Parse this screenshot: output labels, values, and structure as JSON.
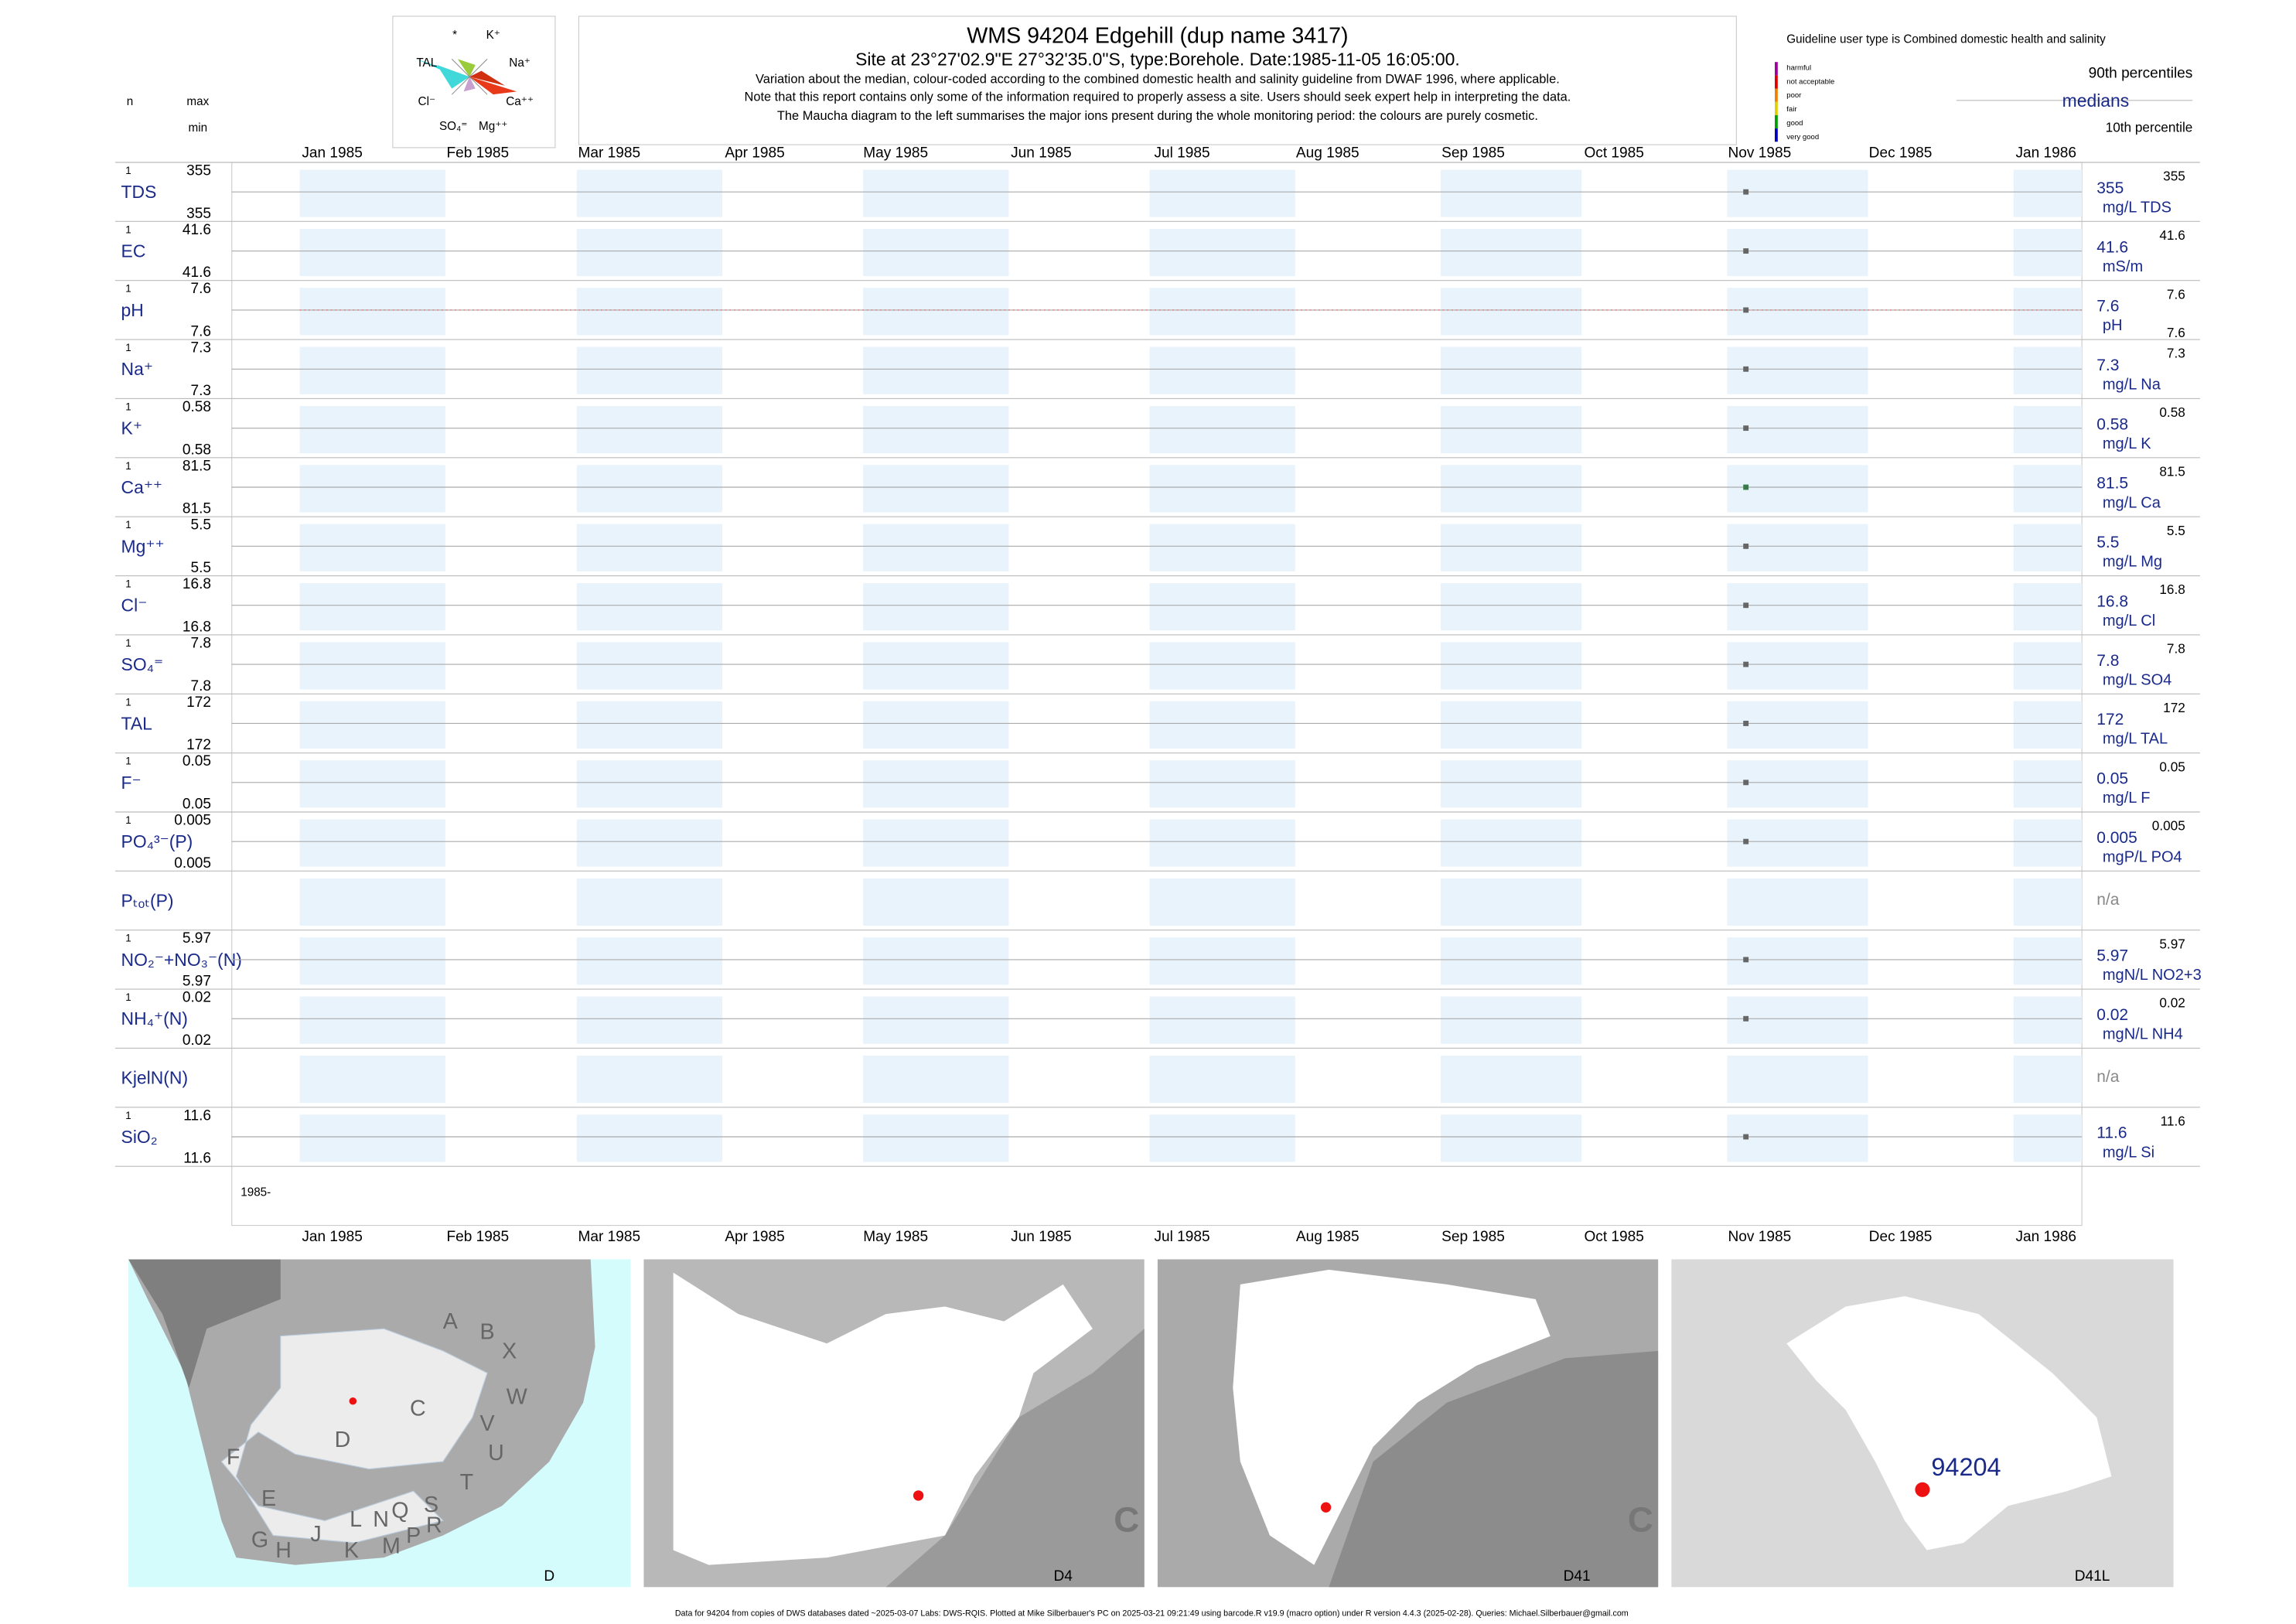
{
  "header": {
    "title": "WMS 94204  Edgehill (dup name 3417)",
    "subtitle": "Site at 23°27'02.9\"E 27°32'35.0\"S, type:Borehole. Date:1985-11-05 16:05:00.",
    "notes": [
      "Variation about the median,  colour-coded according to the combined domestic health and salinity guideline from DWAF 1996, where applicable.",
      "Note that this report contains only some of the information required to properly assess a site. Users should seek expert help in interpreting the data.",
      "The Maucha diagram to the left summarises the major ions present during the whole monitoring period: the colours are purely cosmetic."
    ]
  },
  "maucha": {
    "labels": [
      "*",
      "K⁺",
      "TAL",
      "Na⁺",
      "Cl⁻",
      "Ca⁺⁺",
      "SO₄⁼",
      "Mg⁺⁺"
    ]
  },
  "legend": {
    "guideline": "Guideline user type is Combined domestic health and salinity",
    "levels": [
      {
        "label": "harmful",
        "color": "#a000a0"
      },
      {
        "label": "not acceptable",
        "color": "#e00000"
      },
      {
        "label": "poor",
        "color": "#f08000"
      },
      {
        "label": "fair",
        "color": "#e0d000"
      },
      {
        "label": "good",
        "color": "#00a000"
      },
      {
        "label": "very good",
        "color": "#0000c0"
      }
    ],
    "p90": "90th percentiles",
    "median": "medians",
    "p10": "10th percentile"
  },
  "columns": {
    "n": "n",
    "max": "max",
    "min": "min"
  },
  "months": [
    "Jan 1985",
    "Feb 1985",
    "Mar 1985",
    "Apr 1985",
    "May 1985",
    "Jun 1985",
    "Jul 1985",
    "Aug 1985",
    "Sep 1985",
    "Oct 1985",
    "Nov 1985",
    "Dec 1985",
    "Jan 1986"
  ],
  "axis_start": "1985-",
  "rows": [
    {
      "name": "TDS",
      "n": 1,
      "max": 355,
      "min": 355,
      "median": 355,
      "unit": "mg/L TDS",
      "p90": 355,
      "color": "#666666"
    },
    {
      "name": "EC",
      "n": 1,
      "max": 41.6,
      "min": 41.6,
      "median": 41.6,
      "unit": "mS/m",
      "p90": 41.6,
      "color": "#666666"
    },
    {
      "name": "pH",
      "n": 1,
      "max": 7.6,
      "min": 7.6,
      "median": 7.6,
      "unit": "pH",
      "p90": 7.6,
      "p10": 7.6,
      "color": "#666666"
    },
    {
      "name": "Na⁺",
      "n": 1,
      "max": 7.3,
      "min": 7.3,
      "median": 7.3,
      "unit": "mg/L Na",
      "p90": 7.3,
      "color": "#666666"
    },
    {
      "name": "K⁺",
      "n": 1,
      "max": 0.58,
      "min": 0.58,
      "median": 0.58,
      "unit": "mg/L K",
      "p90": 0.58,
      "color": "#666666"
    },
    {
      "name": "Ca⁺⁺",
      "n": 1,
      "max": 81.5,
      "min": 81.5,
      "median": 81.5,
      "unit": "mg/L Ca",
      "p90": 81.5,
      "color": "#3a7a4a"
    },
    {
      "name": "Mg⁺⁺",
      "n": 1,
      "max": 5.5,
      "min": 5.5,
      "median": 5.5,
      "unit": "mg/L Mg",
      "p90": 5.5,
      "color": "#666666"
    },
    {
      "name": "Cl⁻",
      "n": 1,
      "max": 16.8,
      "min": 16.8,
      "median": 16.8,
      "unit": "mg/L Cl",
      "p90": 16.8,
      "color": "#666666"
    },
    {
      "name": "SO₄⁼",
      "n": 1,
      "max": 7.8,
      "min": 7.8,
      "median": 7.8,
      "unit": "mg/L SO4",
      "p90": 7.8,
      "color": "#666666"
    },
    {
      "name": "TAL",
      "n": 1,
      "max": 172,
      "min": 172,
      "median": 172,
      "unit": "mg/L TAL",
      "p90": 172,
      "color": "#666666"
    },
    {
      "name": "F⁻",
      "n": 1,
      "max": 0.05,
      "min": 0.05,
      "median": 0.05,
      "unit": "mg/L F",
      "p90": 0.05,
      "color": "#666666"
    },
    {
      "name": "PO₄³⁻(P)",
      "n": 1,
      "max": 0.005,
      "min": 0.005,
      "median": 0.005,
      "unit": "mgP/L PO4",
      "p90": 0.005,
      "color": "#666666"
    },
    {
      "name": "Pₜₒₜ(P)",
      "median": "n/a"
    },
    {
      "name": "NO₂⁻+NO₃⁻(N)",
      "n": 1,
      "max": 5.97,
      "min": 5.97,
      "median": 5.97,
      "unit": "mgN/L NO2+3",
      "p90": 5.97,
      "color": "#666666"
    },
    {
      "name": "NH₄⁺(N)",
      "n": 1,
      "max": 0.02,
      "min": 0.02,
      "median": 0.02,
      "unit": "mgN/L NH4",
      "p90": 0.02,
      "color": "#666666"
    },
    {
      "name": "KjelN(N)",
      "median": "n/a"
    },
    {
      "name": "SiO₂",
      "n": 1,
      "max": 11.6,
      "min": 11.6,
      "median": 11.6,
      "unit": "mg/L Si",
      "p90": 11.6,
      "color": "#666666"
    }
  ],
  "maps": [
    {
      "label": "D",
      "regions": [
        "A",
        "B",
        "X",
        "C",
        "W",
        "D",
        "V",
        "U",
        "F",
        "E",
        "T",
        "G",
        "H",
        "J",
        "K",
        "L",
        "N",
        "Q",
        "M",
        "P",
        "S",
        "R"
      ]
    },
    {
      "label": "D4",
      "regions": [
        "C"
      ]
    },
    {
      "label": "D41",
      "regions": [
        "C"
      ]
    },
    {
      "label": "D41L",
      "site": "94204"
    }
  ],
  "footer": "Data for 94204 from copies of DWS databases dated ~2025-03-07 Labs: DWS-RQIS. Plotted at Mike Silberbauer's PC on 2025-03-21 09:21:49 using barcode.R v19.9 (macro option) under R version 4.4.3 (2025-02-28). Queries: Michael.Silberbauer@gmail.com"
}
